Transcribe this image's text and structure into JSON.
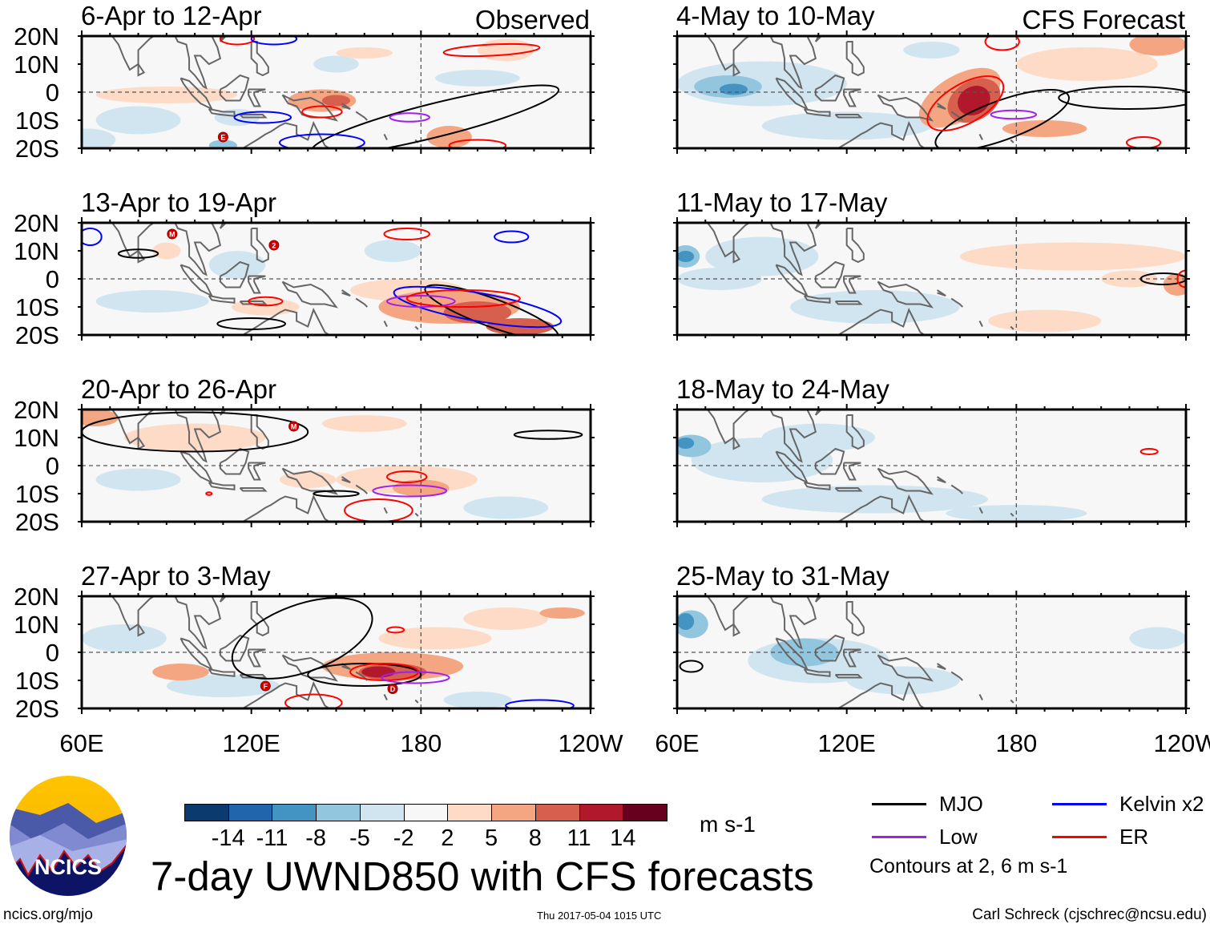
{
  "title": "7-day UWND850 with CFS forecasts",
  "observed_label": "Observed",
  "forecast_label": "CFS Forecast",
  "lat_labels": [
    "20N",
    "10N",
    "0",
    "10S",
    "20S"
  ],
  "lon_labels": [
    "60E",
    "120E",
    "180",
    "120W"
  ],
  "colorbar": {
    "colors": [
      "#0b3a6e",
      "#2166ac",
      "#4393c3",
      "#92c5de",
      "#d1e5f0",
      "#f7f7f7",
      "#fddbc7",
      "#f4a582",
      "#d6604d",
      "#b2182b",
      "#67001f"
    ],
    "labels": [
      "-14",
      "-11",
      "-8",
      "-5",
      "-2",
      "2",
      "5",
      "8",
      "11",
      "14"
    ],
    "units": "m s-1"
  },
  "legend": {
    "items": [
      {
        "label": "MJO",
        "color": "#000000"
      },
      {
        "label": "Kelvin x2",
        "color": "#0000ff"
      },
      {
        "label": "Low",
        "color": "#a020f0"
      },
      {
        "label": "ER",
        "color": "#ff0000"
      }
    ],
    "note": "Contours at 2, 6 m s-1"
  },
  "logo_text": "NCICS",
  "footer": {
    "url": "ncics.org/mjo",
    "timestamp": "Thu 2017-05-04 1015 UTC",
    "credit": "Carl Schreck (cjschrec@ncsu.edu)"
  },
  "panels": [
    {
      "title": "6-Apr to 12-Apr",
      "column": "observed",
      "fills": [
        [
          90,
          -1,
          25,
          3,
          6
        ],
        [
          145,
          -3,
          12,
          4,
          7
        ],
        [
          150,
          -3,
          5,
          2,
          8
        ],
        [
          80,
          -10,
          15,
          5,
          4
        ],
        [
          115,
          -9,
          8,
          3,
          4
        ],
        [
          110,
          -19,
          5,
          2,
          3
        ],
        [
          190,
          -16,
          8,
          4,
          7
        ],
        [
          150,
          10,
          8,
          3,
          4
        ],
        [
          200,
          5,
          15,
          3,
          4
        ],
        [
          160,
          14,
          10,
          2,
          6
        ],
        [
          210,
          15,
          10,
          4,
          6
        ],
        [
          62,
          -17,
          10,
          4,
          4
        ]
      ],
      "contours": [
        [
          "MJO",
          185,
          -10,
          45,
          6,
          -14
        ],
        [
          "ER",
          145,
          -7,
          7,
          2,
          0
        ],
        [
          "ER",
          205,
          15,
          17,
          2,
          -3
        ],
        [
          "ER",
          200,
          -19,
          10,
          2,
          0
        ],
        [
          "ER",
          115,
          19,
          6,
          2,
          0
        ],
        [
          "Kelvin",
          124,
          -9,
          10,
          2,
          0
        ],
        [
          "Kelvin",
          145,
          -18,
          15,
          3,
          0
        ],
        [
          "Kelvin",
          128,
          19,
          8,
          2,
          0
        ],
        [
          "Low",
          176,
          -9,
          7,
          1.5,
          0
        ]
      ],
      "storms": [
        [
          "E",
          110,
          -16
        ]
      ]
    },
    {
      "title": "4-May to 10-May",
      "column": "forecast",
      "fills": [
        [
          90,
          3,
          30,
          8,
          4
        ],
        [
          78,
          2,
          12,
          4,
          3
        ],
        [
          80,
          1,
          5,
          2,
          2
        ],
        [
          120,
          -12,
          30,
          5,
          4
        ],
        [
          150,
          15,
          10,
          3,
          4
        ],
        [
          205,
          10,
          25,
          6,
          6
        ],
        [
          230,
          17,
          10,
          4,
          7
        ],
        [
          190,
          -13,
          15,
          3,
          7
        ],
        [
          160,
          -2,
          16,
          8,
          7,
          -30
        ],
        [
          165,
          -3,
          10,
          7,
          8,
          -30
        ],
        [
          165,
          -3,
          6,
          5,
          9,
          -30
        ]
      ],
      "contours": [
        [
          "MJO",
          175,
          -10,
          25,
          7,
          -20
        ],
        [
          "MJO",
          220,
          -2,
          25,
          4,
          0
        ],
        [
          "ER",
          162,
          -4,
          15,
          7,
          -30
        ],
        [
          "ER",
          175,
          18,
          6,
          3,
          0
        ],
        [
          "ER",
          225,
          -18,
          6,
          2,
          0
        ],
        [
          "Low",
          179,
          -8,
          8,
          1.5,
          0
        ]
      ],
      "storms": []
    },
    {
      "title": "13-Apr to 19-Apr",
      "column": "observed",
      "fills": [
        [
          175,
          -4,
          20,
          4,
          6
        ],
        [
          190,
          -10,
          25,
          6,
          7
        ],
        [
          200,
          -12,
          12,
          4,
          8
        ],
        [
          215,
          -17,
          12,
          3,
          8
        ],
        [
          125,
          -10,
          12,
          3,
          6
        ],
        [
          115,
          5,
          10,
          5,
          4
        ],
        [
          85,
          -8,
          20,
          4,
          4
        ],
        [
          170,
          10,
          10,
          4,
          4
        ],
        [
          90,
          10,
          5,
          3,
          6
        ]
      ],
      "contours": [
        [
          "MJO",
          205,
          -12,
          25,
          5,
          20
        ],
        [
          "MJO",
          120,
          -16,
          12,
          2,
          0
        ],
        [
          "MJO",
          80,
          9,
          7,
          1.5,
          0
        ],
        [
          "Kelvin",
          200,
          -10,
          30,
          5,
          10
        ],
        [
          "Kelvin",
          63,
          15,
          4,
          3,
          0
        ],
        [
          "Kelvin",
          212,
          15,
          6,
          2,
          0
        ],
        [
          "Low",
          180,
          -8,
          12,
          2,
          0
        ],
        [
          "ER",
          195,
          -7,
          20,
          3,
          0
        ],
        [
          "ER",
          175,
          16,
          8,
          2,
          0
        ],
        [
          "ER",
          125,
          -8,
          6,
          1.5,
          0
        ]
      ],
      "storms": [
        [
          "M",
          92,
          16
        ],
        [
          "2",
          128,
          12
        ]
      ]
    },
    {
      "title": "11-May to 17-May",
      "column": "forecast",
      "fills": [
        [
          90,
          8,
          20,
          7,
          4
        ],
        [
          75,
          0,
          15,
          4,
          4
        ],
        [
          63,
          8,
          5,
          4,
          3
        ],
        [
          63,
          8,
          3,
          2,
          2
        ],
        [
          130,
          -10,
          30,
          6,
          4
        ],
        [
          200,
          8,
          40,
          5,
          6
        ],
        [
          220,
          0,
          10,
          3,
          6
        ],
        [
          190,
          -15,
          20,
          4,
          6
        ],
        [
          237,
          -2,
          5,
          4,
          7
        ]
      ],
      "contours": [
        [
          "MJO",
          232,
          0,
          8,
          2,
          0
        ],
        [
          "ER",
          240,
          0,
          3,
          3,
          0
        ]
      ],
      "storms": []
    },
    {
      "title": "20-Apr to 26-Apr",
      "column": "observed",
      "fills": [
        [
          100,
          10,
          25,
          5,
          6
        ],
        [
          175,
          -5,
          25,
          5,
          6
        ],
        [
          180,
          -8,
          10,
          3,
          7
        ],
        [
          140,
          -5,
          10,
          3,
          6
        ],
        [
          80,
          -5,
          15,
          4,
          4
        ],
        [
          210,
          -15,
          15,
          4,
          4
        ],
        [
          160,
          15,
          15,
          3,
          6
        ],
        [
          65,
          17,
          8,
          3,
          7
        ]
      ],
      "contours": [
        [
          "MJO",
          100,
          12,
          40,
          7,
          0
        ],
        [
          "MJO",
          225,
          11,
          12,
          1.5,
          0
        ],
        [
          "MJO",
          150,
          -10,
          8,
          1,
          0
        ],
        [
          "ER",
          175,
          -4,
          7,
          2,
          0
        ],
        [
          "ER",
          165,
          -16,
          12,
          4,
          0
        ],
        [
          "ER",
          105,
          -10,
          1,
          0.5,
          0
        ],
        [
          "Low",
          176,
          -9,
          13,
          2,
          0
        ]
      ],
      "storms": [
        [
          "M",
          135,
          14
        ]
      ]
    },
    {
      "title": "18-May to 24-May",
      "column": "forecast",
      "fills": [
        [
          90,
          2,
          25,
          8,
          4
        ],
        [
          65,
          7,
          7,
          4,
          3
        ],
        [
          63,
          8,
          3,
          2,
          2
        ],
        [
          130,
          -12,
          40,
          5,
          4
        ],
        [
          110,
          10,
          20,
          5,
          4
        ],
        [
          180,
          -17,
          25,
          3,
          4
        ]
      ],
      "contours": [
        [
          "ER",
          227,
          5,
          3,
          1,
          0
        ]
      ],
      "storms": []
    },
    {
      "title": "27-Apr to 3-May",
      "column": "observed",
      "fills": [
        [
          75,
          5,
          15,
          5,
          4
        ],
        [
          110,
          -12,
          20,
          4,
          4
        ],
        [
          200,
          -17,
          12,
          3,
          4
        ],
        [
          185,
          5,
          20,
          4,
          6
        ],
        [
          210,
          12,
          15,
          4,
          6
        ],
        [
          95,
          -7,
          10,
          3,
          7
        ],
        [
          230,
          14,
          8,
          2,
          7
        ],
        [
          170,
          -5,
          25,
          5,
          7
        ],
        [
          170,
          -7,
          12,
          3,
          8
        ],
        [
          165,
          -7,
          6,
          2,
          9
        ]
      ],
      "contours": [
        [
          "MJO",
          138,
          5,
          26,
          12,
          -20
        ],
        [
          "MJO",
          160,
          -8,
          20,
          4,
          0
        ],
        [
          "ER",
          167,
          -7,
          12,
          3,
          0
        ],
        [
          "ER",
          142,
          -18,
          10,
          3,
          0
        ],
        [
          "ER",
          171,
          8,
          3,
          1,
          0
        ],
        [
          "Low",
          178,
          -9,
          12,
          2,
          0
        ],
        [
          "Kelvin",
          222,
          -19,
          12,
          2,
          0
        ]
      ],
      "storms": [
        [
          "F",
          125,
          -12
        ],
        [
          "D",
          170,
          -13
        ]
      ]
    },
    {
      "title": "25-May to 31-May",
      "column": "forecast",
      "fills": [
        [
          110,
          -3,
          25,
          8,
          4
        ],
        [
          105,
          0,
          12,
          5,
          3
        ],
        [
          140,
          -10,
          20,
          5,
          4
        ],
        [
          65,
          10,
          6,
          5,
          3
        ],
        [
          63,
          11,
          3,
          3,
          2
        ],
        [
          230,
          5,
          10,
          4,
          4
        ]
      ],
      "contours": [
        [
          "MJO",
          65,
          -5,
          4,
          2,
          0
        ]
      ],
      "storms": []
    }
  ]
}
